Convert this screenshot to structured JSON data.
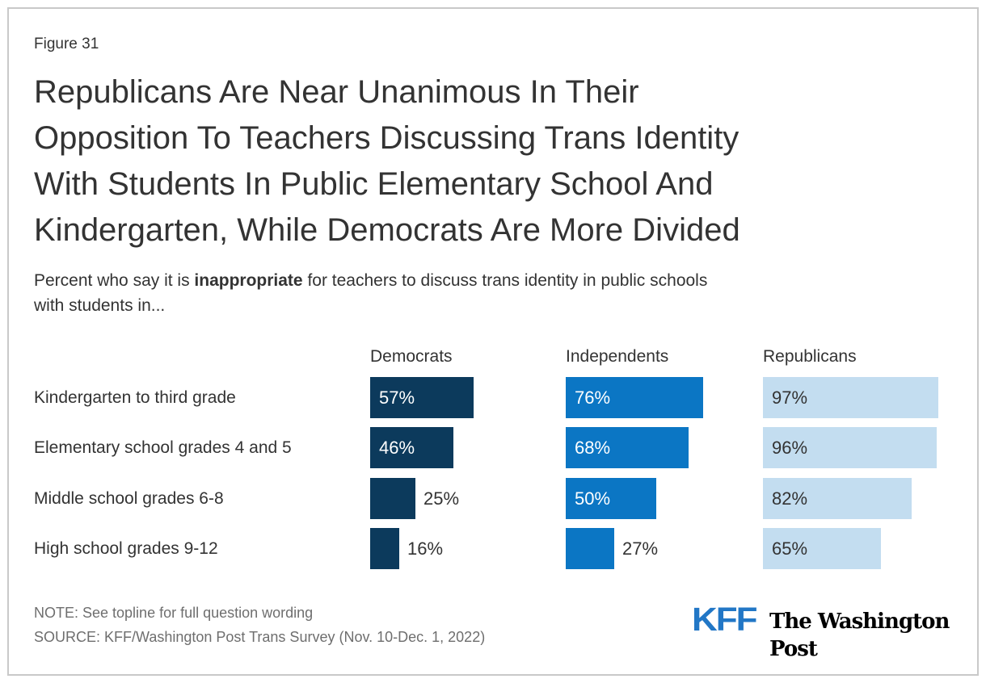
{
  "figure_label": "Figure 31",
  "header": {
    "title_lines": [
      "Republicans Are Near Unanimous In Their",
      "Opposition To Teachers Discussing Trans Identity",
      "With Students In Public Elementary School And",
      "Kindergarten, While Democrats Are More Divided"
    ],
    "subtitle": {
      "line1_prefix": "Percent who say it is ",
      "line1_bold": "inappropriate",
      "line1_suffix": " for teachers to discuss trans identity in public schools",
      "line2": "with students in..."
    }
  },
  "chart_data": {
    "type": "bar",
    "orientation": "horizontal",
    "title": "Republicans Are Near Unanimous In Their Opposition To Teachers Discussing Trans Identity With Students In Public Elementary School And Kindergarten, While Democrats Are More Divided",
    "subtitle": "Percent who say it is inappropriate for teachers to discuss trans identity in public schools with students in...",
    "categories": [
      "Kindergarten to third grade",
      "Elementary school grades 4 and 5",
      "Middle school grades 6-8",
      "High school grades 9-12"
    ],
    "series": [
      {
        "name": "Democrats",
        "color": "#0c3a5c",
        "label_color_inside": "#ffffff",
        "values": [
          57,
          46,
          25,
          16
        ]
      },
      {
        "name": "Independents",
        "color": "#0b76c4",
        "label_color_inside": "#ffffff",
        "values": [
          76,
          68,
          50,
          27
        ]
      },
      {
        "name": "Republicans",
        "color": "#c3ddf0",
        "label_color_inside": "#333333",
        "values": [
          97,
          96,
          82,
          65
        ]
      }
    ],
    "value_suffix": "%",
    "xlim": [
      0,
      100
    ],
    "grid": false,
    "legend_position": "column-headers",
    "value_labels": "shown on every bar; inside bar when bar is wide enough, otherwise outside right in dark text"
  },
  "footer": {
    "note": "NOTE: See topline for full question wording",
    "source": "SOURCE: KFF/Washington Post Trans Survey (Nov. 10-Dec. 1, 2022)",
    "logo_kff": "KFF",
    "logo_wapo": "The Washington Post"
  },
  "colors": {
    "text_dark": "#333333",
    "footer_gray": "#6e6e6e",
    "card_border": "#c9c9c9",
    "democrats_bar": "#0c3a5c",
    "independents_bar": "#0b76c4",
    "republicans_bar": "#c3ddf0",
    "kff_blue": "#2277c6",
    "background": "#ffffff"
  }
}
